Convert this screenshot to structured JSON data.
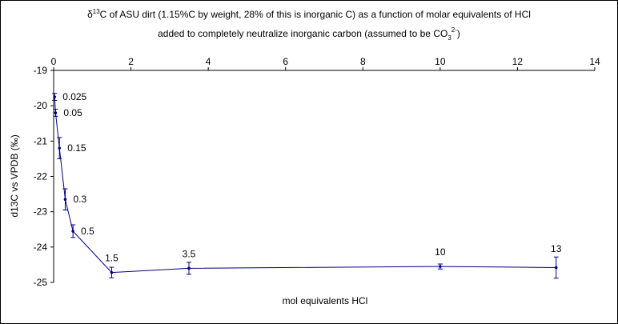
{
  "chart_data": {
    "type": "line",
    "title": [
      [
        "δ",
        "13",
        "C of ASU dirt (1.15%C by weight, 28% of this is inorganic C) as a function of molar equivalents of HCl"
      ],
      [
        "added to completely neutralize inorganic carbon (assumed to be CO",
        "3",
        "2-",
        ")"
      ]
    ],
    "x_label": "mol equivalents HCl",
    "y_label": "d13C vs VPDB (‰)",
    "x": [
      0.025,
      0.05,
      0.15,
      0.3,
      0.5,
      1.5,
      3.5,
      10,
      13
    ],
    "series": [
      {
        "color": "#000080",
        "values": [
          -19.75,
          -20.2,
          -21.2,
          -22.65,
          -23.55,
          -24.72,
          -24.6,
          -24.55,
          -24.58
        ],
        "errors": [
          0.1,
          0.1,
          0.3,
          0.3,
          0.18,
          0.15,
          0.17,
          0.07,
          0.3
        ]
      }
    ],
    "xlim": [
      0,
      14
    ],
    "xticks": [
      0,
      2,
      4,
      6,
      8,
      10,
      12,
      14
    ],
    "ylim": [
      -25,
      -19
    ],
    "yticks": [
      -19,
      -20,
      -21,
      -22,
      -23,
      -24,
      -25
    ]
  }
}
